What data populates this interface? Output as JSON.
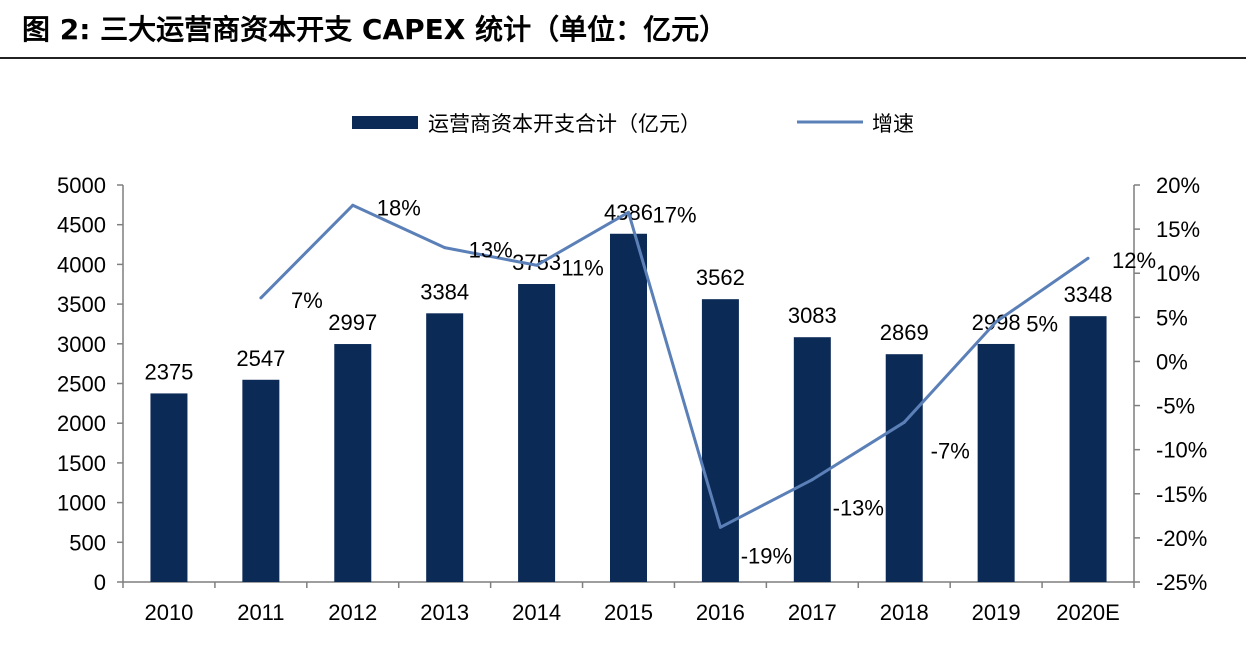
{
  "figure": {
    "title": "图 2:  三大运营商资本开支 CAPEX 统计（单位：亿元）"
  },
  "colors": {
    "bar": "#0c2a56",
    "line": "#5b80b8",
    "axis": "#7f7f7f",
    "text": "#000000"
  },
  "chart_data": {
    "type": "bar",
    "title": "三大运营商资本开支 CAPEX 统计（单位：亿元）",
    "categories": [
      "2010",
      "2011",
      "2012",
      "2013",
      "2014",
      "2015",
      "2016",
      "2017",
      "2018",
      "2019",
      "2020E"
    ],
    "series": [
      {
        "name": "运营商资本开支合计（亿元）",
        "type": "bar",
        "axis": "left",
        "values": [
          2375,
          2547,
          2997,
          3384,
          3753,
          4386,
          3562,
          3083,
          2869,
          2998,
          3348
        ],
        "labels": [
          "2375",
          "2547",
          "2997",
          "3384",
          "3753",
          "4386",
          "3562",
          "3083",
          "2869",
          "2998",
          "3348"
        ]
      },
      {
        "name": "增速",
        "type": "line",
        "axis": "right",
        "values": [
          null,
          7.2,
          17.7,
          12.9,
          10.9,
          16.9,
          -18.8,
          -13.4,
          -6.9,
          4.5,
          11.7
        ],
        "labels": [
          "",
          "7%",
          "18%",
          "13%",
          "11%",
          "17%",
          "-19%",
          "-13%",
          "-7%",
          "5%",
          "12%"
        ]
      }
    ],
    "left_axis": {
      "ylim": [
        0,
        5000
      ],
      "ticks": [
        0,
        500,
        1000,
        1500,
        2000,
        2500,
        3000,
        3500,
        4000,
        4500,
        5000
      ],
      "tick_labels": [
        "0",
        "500",
        "1000",
        "1500",
        "2000",
        "2500",
        "3000",
        "3500",
        "4000",
        "4500",
        "5000"
      ]
    },
    "right_axis": {
      "ylim": [
        -25,
        20
      ],
      "ticks": [
        -25,
        -20,
        -15,
        -10,
        -5,
        0,
        5,
        10,
        15,
        20
      ],
      "tick_labels": [
        "-25%",
        "-20%",
        "-15%",
        "-10%",
        "-5%",
        "0%",
        "5%",
        "10%",
        "15%",
        "20%"
      ]
    },
    "legend": {
      "position": "top-center",
      "entries": [
        "运营商资本开支合计（亿元）",
        "增速"
      ]
    },
    "grid": false
  }
}
